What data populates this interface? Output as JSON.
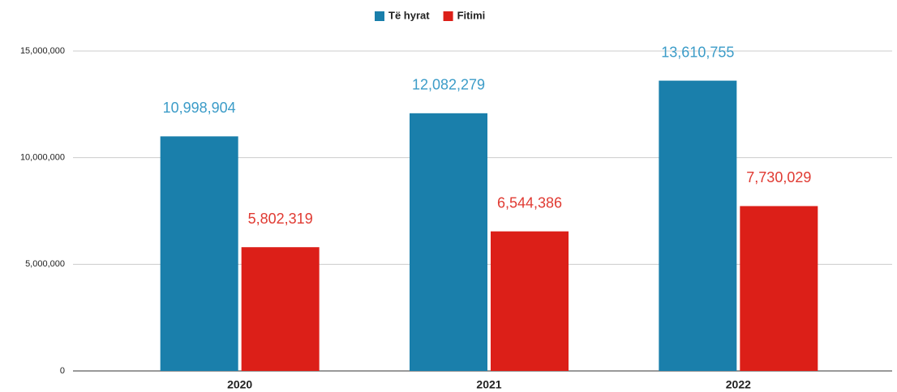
{
  "chart_data": {
    "type": "bar",
    "categories": [
      "2020",
      "2021",
      "2022"
    ],
    "series": [
      {
        "name": "Të hyrat",
        "color": "#1a7fab",
        "values": [
          10998904,
          12082279,
          13610755
        ],
        "value_labels": [
          "10,998,904",
          "12,082,279",
          "13,610,755"
        ]
      },
      {
        "name": "Fitimi",
        "color": "#dc1f18",
        "values": [
          5802319,
          6544386,
          7730029
        ],
        "value_labels": [
          "5,802,319",
          "6,544,386",
          "7,730,029"
        ]
      }
    ],
    "ylim": [
      0,
      15000000
    ],
    "yticks": [
      0,
      {
        "value": 5000000,
        "label": "5,000,000"
      },
      {
        "value": 10000000,
        "label": "10,000,000"
      },
      {
        "value": 15000000,
        "label": "15,000,000"
      }
    ],
    "grid": true,
    "legend": "top"
  }
}
